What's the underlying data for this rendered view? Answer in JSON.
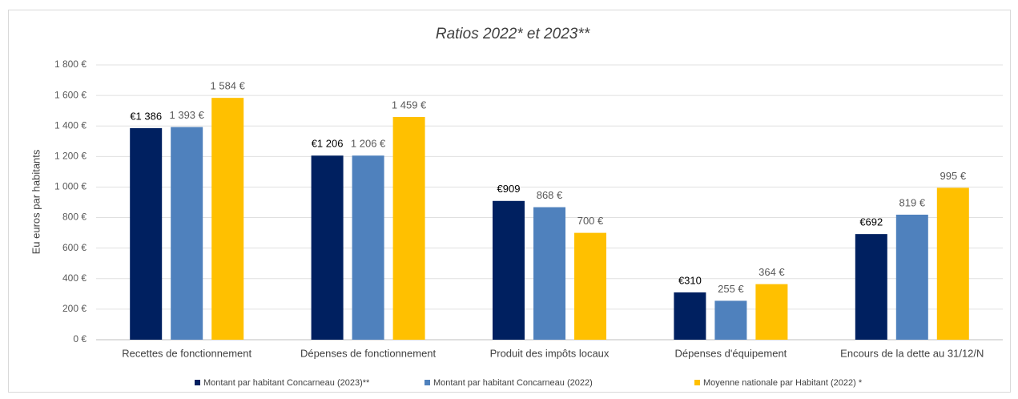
{
  "chart_data": {
    "type": "bar",
    "title": "Ratios 2022* et 2023**",
    "y_label": "Eu euros par habitants",
    "categories": [
      "Recettes de fonctionnement",
      "Dépenses de fonctionnement",
      "Produit des impôts locaux",
      "Dépenses d'équipement",
      "Encours de la dette au 31/12/N"
    ],
    "series": [
      {
        "name": "Montant par habitant Concarneau (2023)**",
        "color": "#002060",
        "values": [
          1386,
          1206,
          909,
          310,
          692
        ],
        "value_labels": [
          "€1 386",
          "€1 206",
          "€909",
          "€310",
          "€692"
        ]
      },
      {
        "name": "Montant par habitant Concarneau (2022)",
        "color": "#4f81bd",
        "values": [
          1393,
          1206,
          868,
          255,
          819
        ],
        "value_labels": [
          "1 393 €",
          "1 206 €",
          "868 €",
          "255 €",
          "819 €"
        ]
      },
      {
        "name": "Moyenne nationale par Habitant (2022) *",
        "color": "#ffc000",
        "values": [
          1584,
          1459,
          700,
          364,
          995
        ],
        "value_labels": [
          "1 584 €",
          "1 459 €",
          "700 €",
          "364 €",
          "995 €"
        ]
      }
    ],
    "ylim": [
      0,
      1800
    ],
    "yticks": [
      {
        "value": 0,
        "label": "0 €"
      },
      {
        "value": 200,
        "label": "200 €"
      },
      {
        "value": 400,
        "label": "400 €"
      },
      {
        "value": 600,
        "label": "600 €"
      },
      {
        "value": 800,
        "label": "800 €"
      },
      {
        "value": 1000,
        "label": "1 000 €"
      },
      {
        "value": 1200,
        "label": "1 200 €"
      },
      {
        "value": 1400,
        "label": "1 400 €"
      },
      {
        "value": 1600,
        "label": "1 600 €"
      },
      {
        "value": 1800,
        "label": "1 800 €"
      }
    ],
    "grid": true,
    "legend": "bottom"
  }
}
